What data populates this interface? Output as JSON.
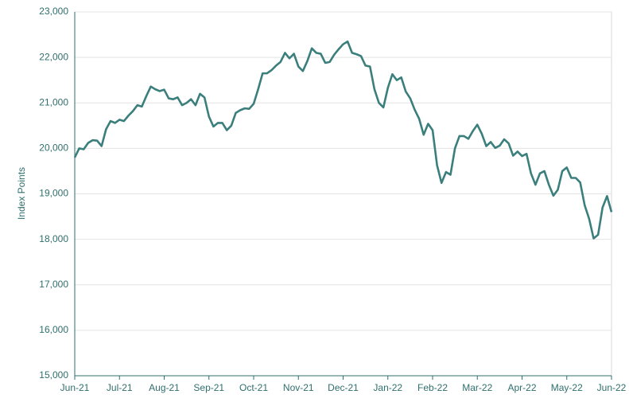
{
  "chart_data": {
    "type": "line",
    "y_label": "Index Points",
    "categories": [
      "Jun-21",
      null,
      null,
      null,
      null,
      null,
      null,
      null,
      null,
      null,
      "Jul-21",
      null,
      null,
      null,
      null,
      null,
      null,
      null,
      null,
      null,
      "Aug-21",
      null,
      null,
      null,
      null,
      null,
      null,
      null,
      null,
      null,
      "Sep-21",
      null,
      null,
      null,
      null,
      null,
      null,
      null,
      null,
      null,
      "Oct-21",
      null,
      null,
      null,
      null,
      null,
      null,
      null,
      null,
      null,
      "Nov-21",
      null,
      null,
      null,
      null,
      null,
      null,
      null,
      null,
      null,
      "Dec-21",
      null,
      null,
      null,
      null,
      null,
      null,
      null,
      null,
      null,
      "Jan-22",
      null,
      null,
      null,
      null,
      null,
      null,
      null,
      null,
      null,
      "Feb-22",
      null,
      null,
      null,
      null,
      null,
      null,
      null,
      null,
      null,
      "Mar-22",
      null,
      null,
      null,
      null,
      null,
      null,
      null,
      null,
      null,
      "Apr-22",
      null,
      null,
      null,
      null,
      null,
      null,
      null,
      null,
      null,
      "May-22",
      null,
      null,
      null,
      null,
      null,
      null,
      null,
      null,
      null,
      "Jun-22"
    ],
    "values": [
      19800,
      20000,
      19980,
      20120,
      20180,
      20170,
      20050,
      20420,
      20600,
      20560,
      20630,
      20600,
      20720,
      20820,
      20950,
      20920,
      21150,
      21360,
      21300,
      21260,
      21290,
      21100,
      21080,
      21120,
      20950,
      21000,
      21080,
      20950,
      21200,
      21120,
      20700,
      20480,
      20560,
      20560,
      20400,
      20500,
      20780,
      20840,
      20880,
      20870,
      20980,
      21300,
      21650,
      21650,
      21720,
      21820,
      21900,
      22100,
      21980,
      22080,
      21800,
      21700,
      21920,
      22200,
      22100,
      22080,
      21880,
      21900,
      22060,
      22180,
      22290,
      22350,
      22100,
      22070,
      22030,
      21820,
      21800,
      21300,
      21000,
      20900,
      21330,
      21630,
      21500,
      21560,
      21250,
      21100,
      20850,
      20650,
      20300,
      20540,
      20400,
      19630,
      19240,
      19480,
      19420,
      20000,
      20270,
      20270,
      20210,
      20380,
      20520,
      20320,
      20050,
      20140,
      20010,
      20060,
      20200,
      20110,
      19840,
      19930,
      19830,
      19880,
      19450,
      19200,
      19450,
      19500,
      19200,
      18960,
      19090,
      19500,
      19580,
      19350,
      19350,
      19250,
      18750,
      18450,
      18020,
      18100,
      18700,
      18950,
      18600
    ],
    "color": "#3b7f7d",
    "ylim": [
      15000,
      23000
    ],
    "yticks": [
      {
        "value": 15000,
        "label": "15,000"
      },
      {
        "value": 16000,
        "label": "16,000"
      },
      {
        "value": 17000,
        "label": "17,000"
      },
      {
        "value": 18000,
        "label": "18,000"
      },
      {
        "value": 19000,
        "label": "19,000"
      },
      {
        "value": 20000,
        "label": "20,000"
      },
      {
        "value": 21000,
        "label": "21,000"
      },
      {
        "value": 22000,
        "label": "22,000"
      },
      {
        "value": 23000,
        "label": "23,000"
      }
    ],
    "grid": true
  }
}
